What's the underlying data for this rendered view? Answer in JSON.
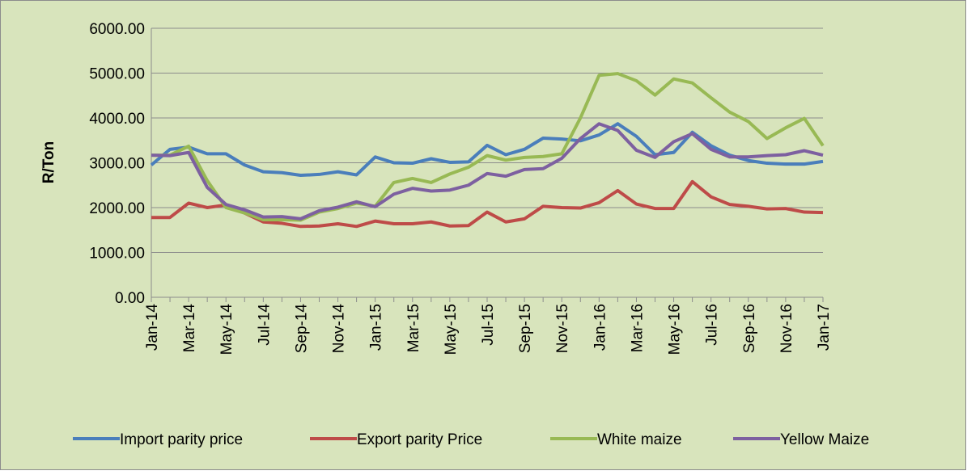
{
  "chart_data": {
    "type": "line",
    "ylabel": "R/Ton",
    "categories": [
      "Jan-14",
      null,
      "Mar-14",
      null,
      "May-14",
      null,
      "Jul-14",
      null,
      "Sep-14",
      null,
      "Nov-14",
      null,
      "Jan-15",
      null,
      "Mar-15",
      null,
      "May-15",
      null,
      "Jul-15",
      null,
      "Sep-15",
      null,
      "Nov-15",
      null,
      "Jan-16",
      null,
      "Mar-16",
      null,
      "May-16",
      null,
      "Jul-16",
      null,
      "Sep-16",
      null,
      "Nov-16",
      null,
      "Jan-17"
    ],
    "series": [
      {
        "name": "Import parity price",
        "color": "#4a7ebb",
        "values": [
          2950,
          3300,
          3350,
          3200,
          3200,
          2950,
          2800,
          2780,
          2720,
          2740,
          2800,
          2730,
          3130,
          3000,
          2990,
          3090,
          3010,
          3020,
          3390,
          3180,
          3300,
          3550,
          3530,
          3490,
          3620,
          3870,
          3590,
          3180,
          3230,
          3680,
          3380,
          3170,
          3050,
          2990,
          2970,
          2970,
          3030
        ]
      },
      {
        "name": "Export parity Price",
        "color": "#be4b48",
        "values": [
          1780,
          1780,
          2100,
          2000,
          2060,
          1880,
          1680,
          1650,
          1580,
          1590,
          1640,
          1580,
          1700,
          1640,
          1640,
          1680,
          1590,
          1600,
          1900,
          1680,
          1750,
          2030,
          2000,
          1990,
          2110,
          2380,
          2080,
          1980,
          1980,
          2580,
          2240,
          2070,
          2030,
          1970,
          1980,
          1900,
          1890
        ]
      },
      {
        "name": "White maize",
        "color": "#98b954",
        "values": [
          3170,
          3170,
          3370,
          2600,
          2000,
          1880,
          1730,
          1730,
          1720,
          1900,
          1980,
          2100,
          2030,
          2560,
          2650,
          2560,
          2750,
          2900,
          3160,
          3060,
          3120,
          3140,
          3200,
          4000,
          4950,
          4990,
          4830,
          4510,
          4870,
          4780,
          4450,
          4130,
          3920,
          3540,
          3780,
          3990,
          3380
        ]
      },
      {
        "name": "Yellow Maize",
        "color": "#7d60a0",
        "values": [
          3170,
          3160,
          3230,
          2450,
          2070,
          1950,
          1790,
          1800,
          1750,
          1930,
          2010,
          2130,
          2020,
          2300,
          2430,
          2370,
          2390,
          2500,
          2760,
          2700,
          2850,
          2870,
          3100,
          3540,
          3870,
          3720,
          3280,
          3120,
          3470,
          3650,
          3300,
          3130,
          3130,
          3160,
          3180,
          3270,
          3170
        ]
      }
    ],
    "ylim": [
      0,
      6000
    ],
    "yticks": [
      {
        "value": 0,
        "label": "0.00"
      },
      {
        "value": 1000,
        "label": "1000.00"
      },
      {
        "value": 2000,
        "label": "2000.00"
      },
      {
        "value": 3000,
        "label": "3000.00"
      },
      {
        "value": 4000,
        "label": "4000.00"
      },
      {
        "value": 5000,
        "label": "5000.00"
      },
      {
        "value": 6000,
        "label": "6000.00"
      }
    ],
    "grid": true,
    "legend": "bottom",
    "background": "#d8e4bc"
  }
}
